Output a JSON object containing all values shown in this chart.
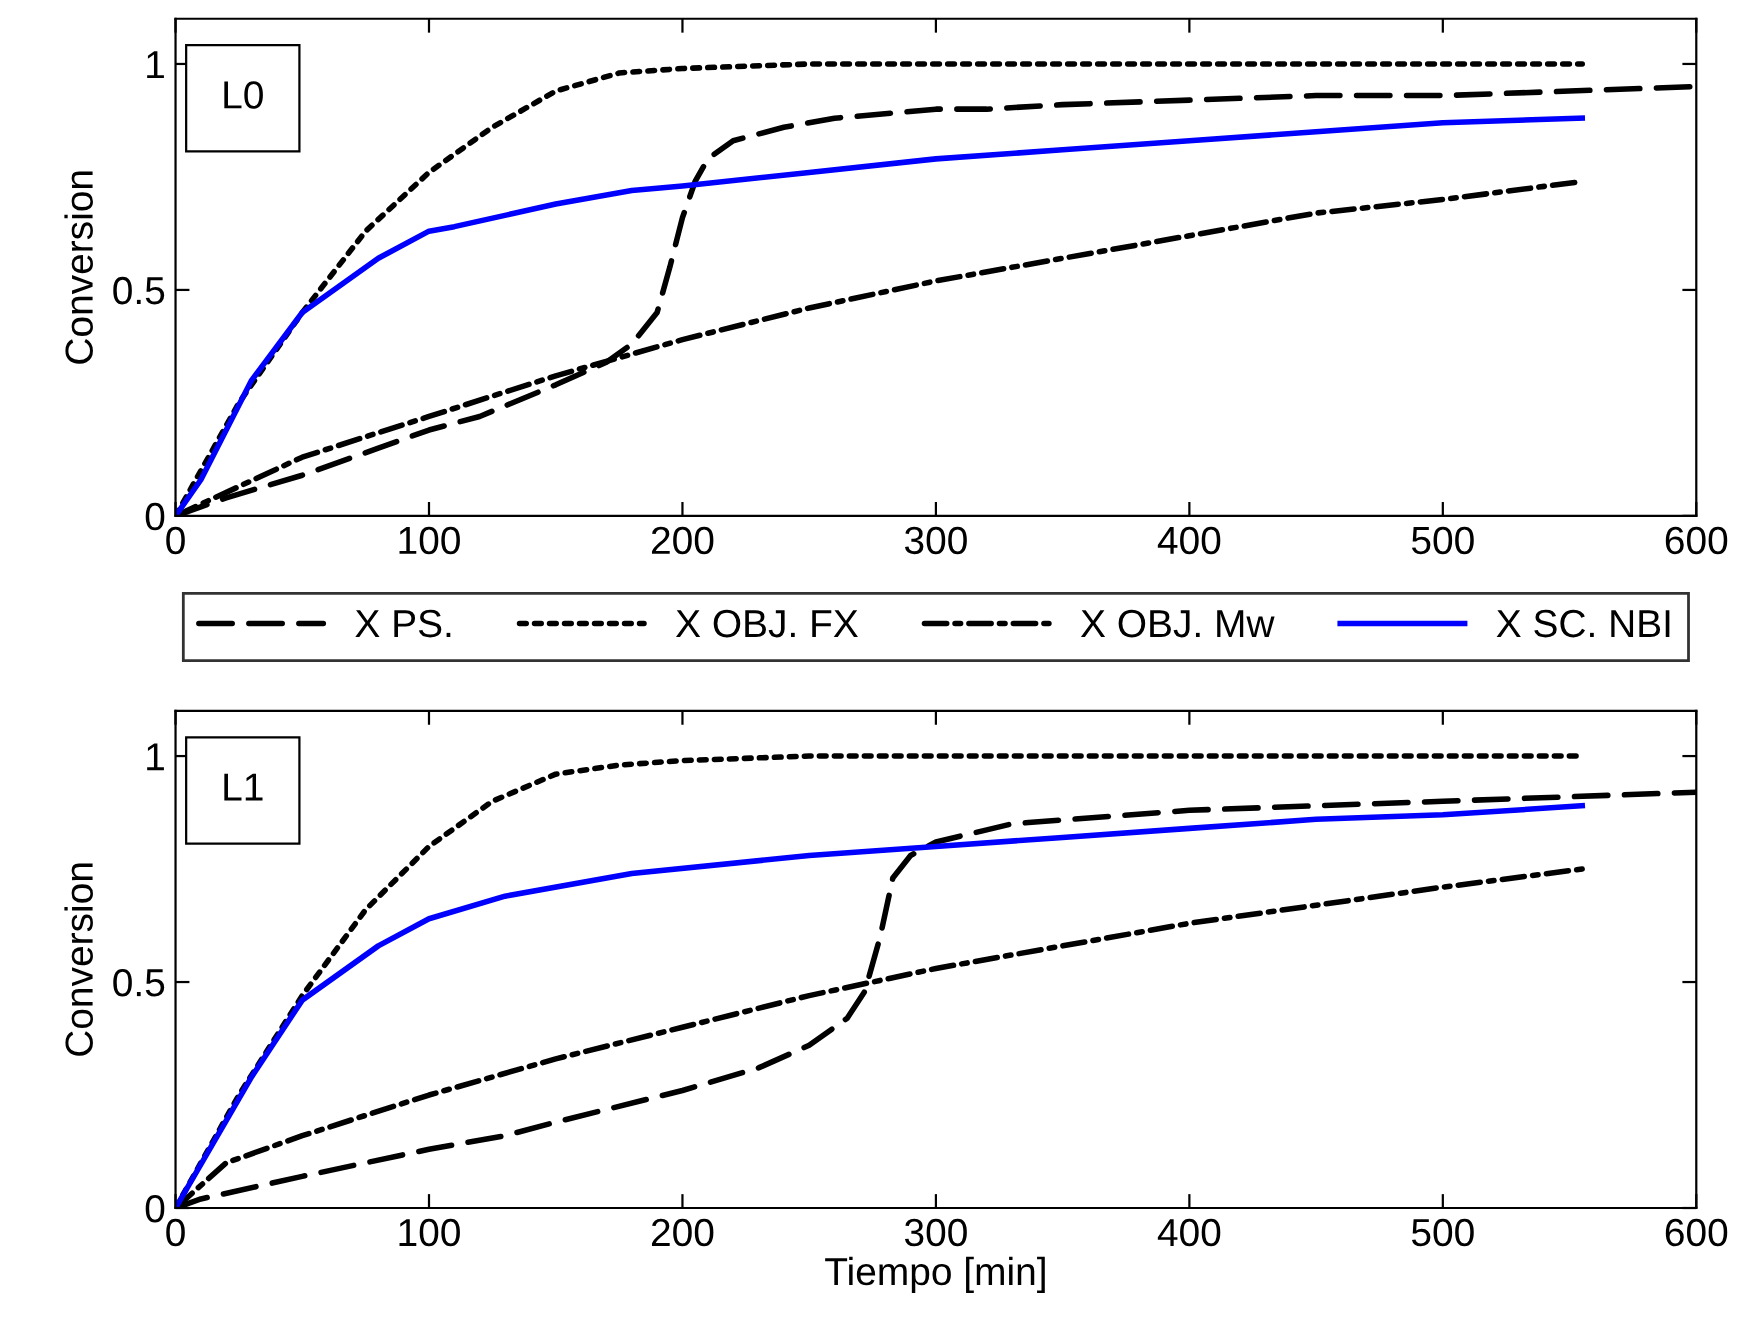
{
  "chart_data": [
    {
      "type": "line",
      "ylabel": "Conversion",
      "annotations": [
        "L0"
      ],
      "xlim": [
        0,
        600
      ],
      "ylim": [
        0,
        1.1
      ],
      "xticks": [
        0,
        100,
        200,
        300,
        400,
        500,
        600
      ],
      "yticks": [
        0,
        0.5,
        1
      ],
      "grid": false,
      "legend": "bottom",
      "series": [
        {
          "name": "X PS.",
          "color": "#000000",
          "line_style": "dashed",
          "x": [
            0,
            20,
            50,
            80,
            100,
            120,
            150,
            170,
            180,
            190,
            195,
            200,
            205,
            210,
            220,
            240,
            260,
            300,
            320,
            350,
            400,
            450,
            500,
            550,
            600
          ],
          "values": [
            0,
            0.04,
            0.09,
            0.15,
            0.19,
            0.22,
            0.29,
            0.34,
            0.38,
            0.45,
            0.55,
            0.66,
            0.74,
            0.79,
            0.83,
            0.86,
            0.88,
            0.9,
            0.9,
            0.91,
            0.92,
            0.93,
            0.93,
            0.94,
            0.95
          ]
        },
        {
          "name": "X OBJ. FX",
          "color": "#000000",
          "line_style": "dotted",
          "x": [
            0,
            25,
            50,
            75,
            100,
            125,
            150,
            175,
            200,
            250,
            555
          ],
          "values": [
            0,
            0.25,
            0.45,
            0.63,
            0.76,
            0.86,
            0.94,
            0.98,
            0.99,
            1.0,
            1.0
          ]
        },
        {
          "name": "X OBJ. Mw",
          "color": "#000000",
          "line_style": "dashdot",
          "x": [
            0,
            50,
            100,
            150,
            200,
            250,
            300,
            350,
            400,
            450,
            500,
            555
          ],
          "values": [
            0,
            0.13,
            0.22,
            0.31,
            0.39,
            0.46,
            0.52,
            0.57,
            0.62,
            0.67,
            0.7,
            0.74
          ]
        },
        {
          "name": "X SC. NBI",
          "color": "#0000ff",
          "line_style": "solid",
          "x": [
            0,
            10,
            30,
            50,
            80,
            100,
            110,
            150,
            180,
            200,
            250,
            300,
            350,
            400,
            450,
            500,
            555
          ],
          "values": [
            0,
            0.08,
            0.3,
            0.45,
            0.57,
            0.63,
            0.64,
            0.69,
            0.72,
            0.73,
            0.76,
            0.79,
            0.81,
            0.83,
            0.85,
            0.87,
            0.88
          ]
        }
      ]
    },
    {
      "type": "line",
      "xlabel": "Tiempo [min]",
      "ylabel": "Conversion",
      "annotations": [
        "L1"
      ],
      "xlim": [
        0,
        600
      ],
      "ylim": [
        0,
        1.1
      ],
      "xticks": [
        0,
        100,
        200,
        300,
        400,
        500,
        600
      ],
      "yticks": [
        0,
        0.5,
        1
      ],
      "grid": false,
      "series": [
        {
          "color": "#000000",
          "line_style": "dashed",
          "x": [
            0,
            10,
            50,
            100,
            130,
            150,
            200,
            230,
            250,
            265,
            272,
            278,
            283,
            290,
            300,
            330,
            400,
            500,
            600
          ],
          "values": [
            0,
            0.02,
            0.07,
            0.13,
            0.16,
            0.19,
            0.26,
            0.31,
            0.36,
            0.42,
            0.48,
            0.6,
            0.73,
            0.78,
            0.81,
            0.85,
            0.88,
            0.9,
            0.92
          ]
        },
        {
          "color": "#000000",
          "line_style": "dotted",
          "x": [
            0,
            25,
            50,
            75,
            100,
            125,
            150,
            175,
            200,
            250,
            555
          ],
          "values": [
            0,
            0.25,
            0.47,
            0.66,
            0.8,
            0.9,
            0.96,
            0.98,
            0.99,
            1.0,
            1.0
          ]
        },
        {
          "color": "#000000",
          "line_style": "dashdot",
          "x": [
            0,
            20,
            50,
            100,
            150,
            200,
            250,
            300,
            350,
            400,
            450,
            500,
            555
          ],
          "values": [
            0,
            0.1,
            0.16,
            0.25,
            0.33,
            0.4,
            0.47,
            0.53,
            0.58,
            0.63,
            0.67,
            0.71,
            0.75
          ]
        },
        {
          "color": "#0000ff",
          "line_style": "solid",
          "x": [
            0,
            30,
            50,
            80,
            100,
            130,
            180,
            250,
            300,
            350,
            400,
            450,
            500,
            555
          ],
          "values": [
            0,
            0.29,
            0.46,
            0.58,
            0.64,
            0.69,
            0.74,
            0.78,
            0.8,
            0.82,
            0.84,
            0.86,
            0.87,
            0.89
          ]
        }
      ]
    }
  ]
}
